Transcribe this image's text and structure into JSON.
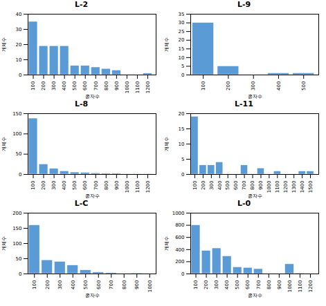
{
  "chart_data": [
    {
      "type": "bar",
      "title": "L-2",
      "xlabel": "종자수",
      "ylabel": "개체수",
      "x": [
        100,
        200,
        300,
        400,
        500,
        600,
        700,
        800,
        900,
        1000,
        1100,
        1200
      ],
      "values": [
        35,
        19,
        19,
        19,
        6,
        6,
        5,
        4,
        3,
        0,
        0,
        1
      ],
      "color": "#5b9bd5",
      "xlim": [
        50,
        1280
      ],
      "xticks": [
        100,
        200,
        300,
        400,
        500,
        600,
        700,
        800,
        900,
        1000,
        1100,
        1200
      ],
      "ylim": [
        0,
        40
      ],
      "yticks": [
        0,
        10,
        20,
        30,
        40
      ]
    },
    {
      "type": "bar",
      "title": "L-9",
      "xlabel": "종자수",
      "ylabel": "개체수",
      "x": [
        100,
        200,
        300,
        400,
        500
      ],
      "values": [
        30,
        5,
        0,
        1,
        1
      ],
      "color": "#5b9bd5",
      "xlim": [
        50,
        560
      ],
      "xticks": [
        100,
        200,
        300,
        400,
        500
      ],
      "ylim": [
        0,
        35
      ],
      "yticks": [
        0,
        5,
        10,
        15,
        20,
        25,
        30,
        35
      ]
    },
    {
      "type": "bar",
      "title": "L-8",
      "xlabel": "종자수",
      "ylabel": "개체수",
      "x": [
        100,
        200,
        300,
        400,
        500,
        600,
        700,
        800,
        900,
        1000,
        1100,
        1200
      ],
      "values": [
        138,
        25,
        14,
        8,
        5,
        4,
        3,
        2,
        2,
        1,
        1,
        1
      ],
      "color": "#5b9bd5",
      "xlim": [
        50,
        1280
      ],
      "xticks": [
        100,
        200,
        300,
        400,
        500,
        600,
        700,
        800,
        900,
        1000,
        1100,
        1200
      ],
      "ylim": [
        0,
        150
      ],
      "yticks": [
        0,
        50,
        100,
        150
      ]
    },
    {
      "type": "bar",
      "title": "L-11",
      "xlabel": "종자수",
      "ylabel": "개체수",
      "x": [
        100,
        200,
        300,
        400,
        500,
        600,
        700,
        800,
        900,
        1000,
        1100,
        1200,
        1300,
        1400,
        1500
      ],
      "values": [
        19,
        3,
        3,
        4,
        0,
        0,
        3,
        0,
        2,
        0,
        1,
        0,
        0,
        1,
        1
      ],
      "color": "#5b9bd5",
      "xlim": [
        50,
        1600
      ],
      "xticks": [
        100,
        200,
        300,
        400,
        500,
        600,
        700,
        800,
        900,
        1000,
        1100,
        1200,
        1300,
        1400,
        1500
      ],
      "ylim": [
        0,
        20
      ],
      "yticks": [
        0,
        5,
        10,
        15,
        20
      ]
    },
    {
      "type": "bar",
      "title": "L-C",
      "xlabel": "종자수",
      "ylabel": "개체수",
      "x": [
        100,
        200,
        300,
        400,
        500,
        600,
        700,
        800,
        900,
        1000
      ],
      "values": [
        160,
        45,
        40,
        28,
        12,
        5,
        3,
        0,
        2,
        0
      ],
      "color": "#5b9bd5",
      "xlim": [
        50,
        1050
      ],
      "xticks": [
        100,
        200,
        300,
        400,
        500,
        600,
        700,
        800,
        900,
        1000
      ],
      "ylim": [
        0,
        200
      ],
      "yticks": [
        0,
        50,
        100,
        150,
        200
      ]
    },
    {
      "type": "bar",
      "title": "L-0",
      "xlabel": "종자수",
      "ylabel": "개체수",
      "x": [
        100,
        200,
        300,
        400,
        500,
        600,
        700,
        800,
        900,
        1000,
        1100,
        1200
      ],
      "values": [
        800,
        380,
        420,
        290,
        110,
        100,
        80,
        0,
        0,
        160,
        10,
        5
      ],
      "color": "#5b9bd5",
      "xlim": [
        50,
        1280
      ],
      "xticks": [
        100,
        200,
        300,
        400,
        500,
        600,
        700,
        800,
        900,
        1000,
        1100,
        1200
      ],
      "ylim": [
        0,
        1000
      ],
      "yticks": [
        0,
        200,
        400,
        600,
        800,
        1000
      ]
    }
  ]
}
